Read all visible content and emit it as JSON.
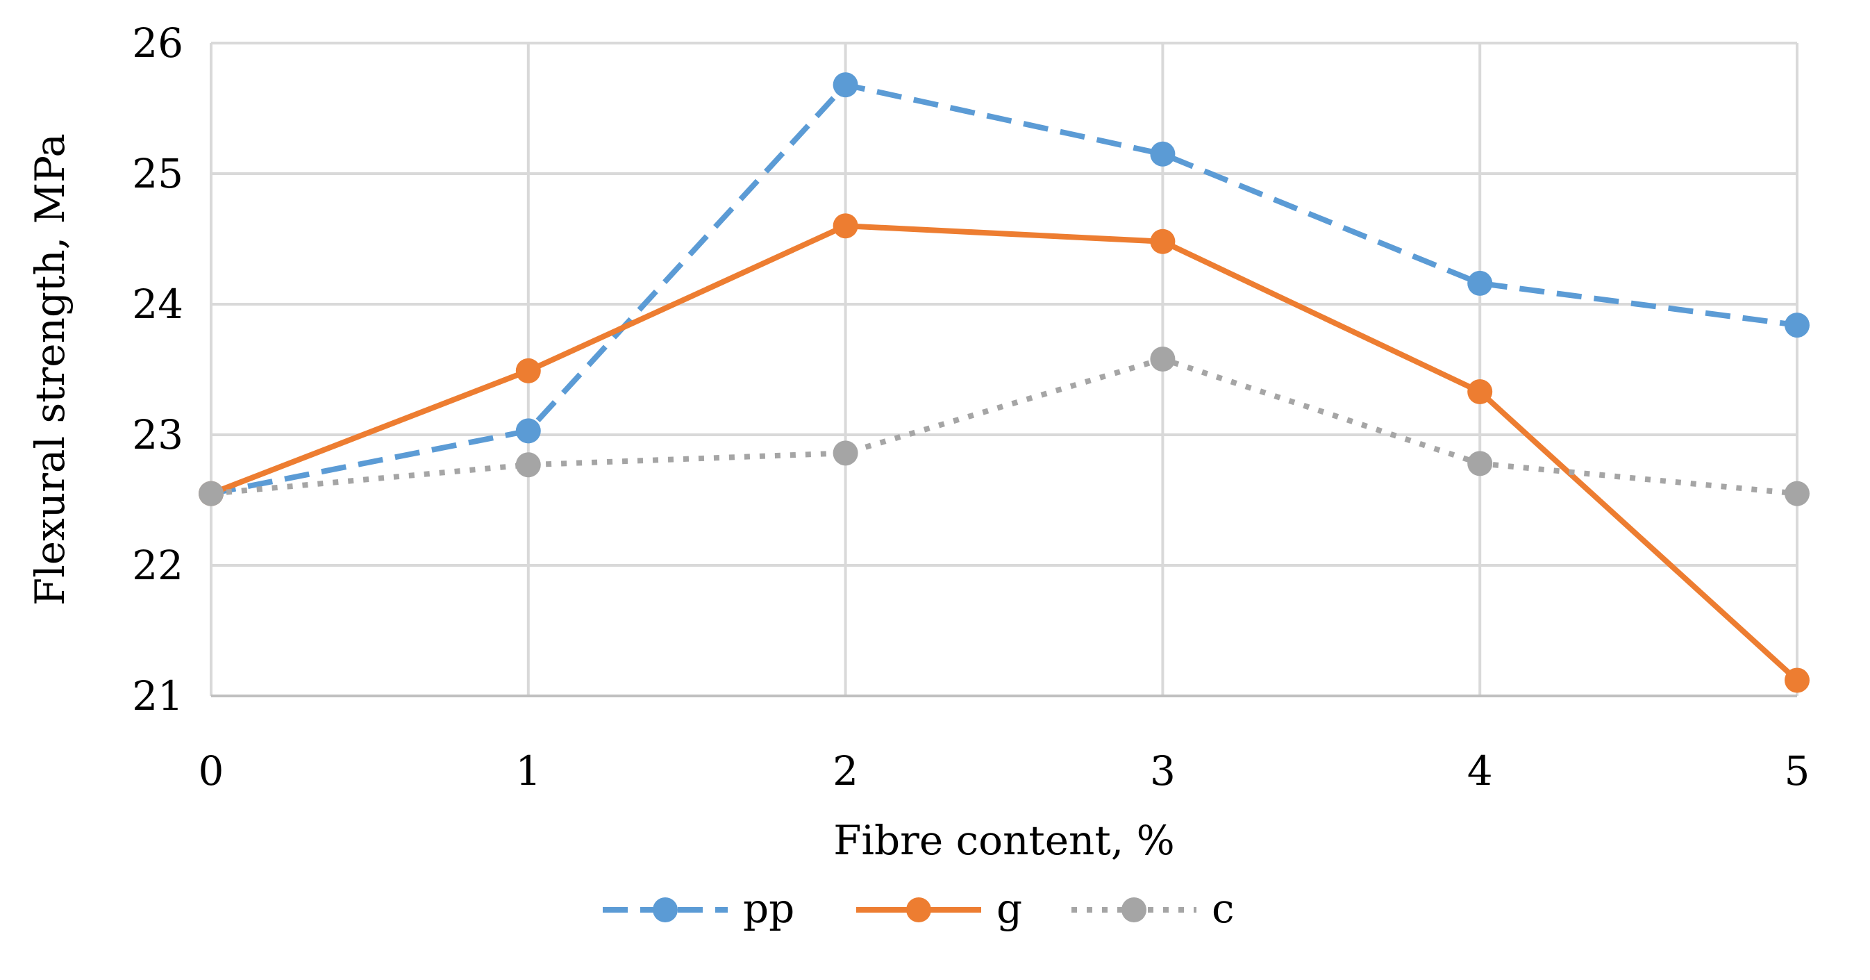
{
  "chart_data": {
    "type": "line",
    "title": "",
    "xlabel": "Fibre content, %",
    "ylabel": "Flexural strength, MPa",
    "x": [
      0,
      1,
      2,
      3,
      4,
      5
    ],
    "x_tick_labels": [
      "0",
      "1",
      "2",
      "3",
      "4",
      "5"
    ],
    "y_tick_labels": [
      "21",
      "22",
      "23",
      "24",
      "25",
      "26"
    ],
    "xlim": [
      0,
      5
    ],
    "ylim": [
      21,
      26
    ],
    "grid": true,
    "legend_position": "bottom-center",
    "series": [
      {
        "name": "pp",
        "values": [
          22.55,
          23.03,
          25.68,
          25.15,
          24.16,
          23.84
        ],
        "color": "#5b9bd5",
        "line_style": "dashed"
      },
      {
        "name": "g",
        "values": [
          22.55,
          23.49,
          24.6,
          24.48,
          23.33,
          21.12
        ],
        "color": "#ed7d31",
        "line_style": "solid"
      },
      {
        "name": "c",
        "values": [
          22.55,
          22.77,
          22.86,
          23.58,
          22.78,
          22.55
        ],
        "color": "#a5a5a5",
        "line_style": "dotted"
      }
    ]
  }
}
